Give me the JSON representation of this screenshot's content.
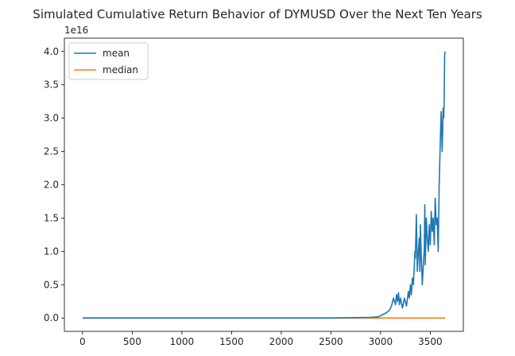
{
  "chart_data": {
    "type": "line",
    "title": "Simulated Cumulative Return Behavior of DYMUSD Over the Next Ten Years",
    "xlabel": "",
    "ylabel": "",
    "offset_label": "1e16",
    "xlim": [
      -183,
      3833
    ],
    "ylim": [
      -0.2,
      4.2
    ],
    "x_ticks": [
      0,
      500,
      1000,
      1500,
      2000,
      2500,
      3000,
      3500
    ],
    "y_ticks": [
      0.0,
      0.5,
      1.0,
      1.5,
      2.0,
      2.5,
      3.0,
      3.5,
      4.0
    ],
    "y_tick_labels": [
      "0.0",
      "0.5",
      "1.0",
      "1.5",
      "2.0",
      "2.5",
      "3.0",
      "3.5",
      "4.0"
    ],
    "legend_position": "top-left",
    "grid": false,
    "series": [
      {
        "name": "mean",
        "color": "#1f77b4",
        "x": [
          0,
          500,
          1000,
          1500,
          2000,
          2500,
          2900,
          2980,
          3020,
          3060,
          3090,
          3110,
          3130,
          3150,
          3160,
          3170,
          3180,
          3190,
          3200,
          3220,
          3240,
          3260,
          3280,
          3290,
          3300,
          3310,
          3320,
          3330,
          3340,
          3345,
          3350,
          3360,
          3370,
          3380,
          3390,
          3395,
          3400,
          3410,
          3420,
          3430,
          3440,
          3445,
          3450,
          3460,
          3470,
          3480,
          3490,
          3500,
          3510,
          3520,
          3530,
          3540,
          3550,
          3560,
          3570,
          3580,
          3590,
          3600,
          3610,
          3620,
          3630,
          3635,
          3640,
          3645,
          3650
        ],
        "values": [
          0.0,
          0.0,
          0.0,
          0.0,
          0.0,
          0.0,
          0.01,
          0.02,
          0.05,
          0.08,
          0.12,
          0.18,
          0.3,
          0.2,
          0.35,
          0.25,
          0.38,
          0.2,
          0.3,
          0.15,
          0.3,
          0.18,
          0.4,
          0.3,
          0.5,
          0.35,
          0.6,
          0.5,
          0.8,
          1.0,
          0.9,
          1.55,
          0.7,
          1.0,
          1.2,
          0.7,
          1.4,
          0.9,
          0.5,
          0.8,
          1.05,
          1.7,
          0.8,
          1.5,
          1.2,
          1.0,
          1.4,
          1.1,
          1.6,
          1.3,
          1.5,
          1.1,
          1.8,
          1.4,
          1.5,
          1.0,
          2.0,
          2.6,
          3.1,
          2.5,
          3.15,
          3.0,
          3.3,
          3.95,
          4.0
        ]
      },
      {
        "name": "median",
        "color": "#ff7f0e",
        "x": [
          0,
          3650
        ],
        "values": [
          0.0,
          0.0
        ]
      }
    ]
  }
}
